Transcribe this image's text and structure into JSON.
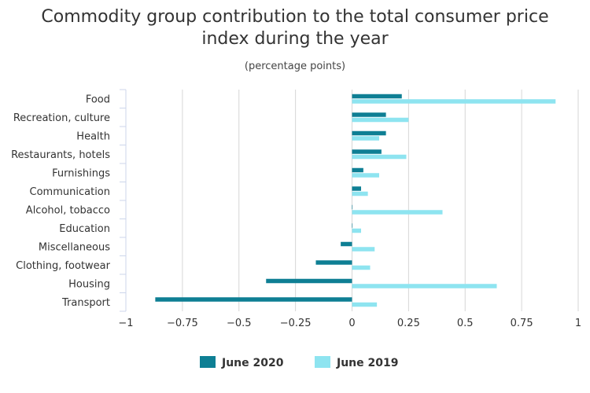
{
  "chart_data": {
    "type": "bar",
    "orientation": "horizontal",
    "title": "Commodity group contribution to the total consumer price index during the year",
    "subtitle": "(percentage points)",
    "categories": [
      "Food",
      "Recreation, culture",
      "Health",
      "Restaurants, hotels",
      "Furnishings",
      "Communication",
      "Alcohol, tobacco",
      "Education",
      "Miscellaneous",
      "Clothing, footwear",
      "Housing",
      "Transport"
    ],
    "series": [
      {
        "name": "June 2020",
        "color": "#0e7f94",
        "values": [
          0.22,
          0.15,
          0.15,
          0.13,
          0.05,
          0.04,
          0.0,
          0.0,
          -0.05,
          -0.16,
          -0.38,
          -0.87
        ]
      },
      {
        "name": "June 2019",
        "color": "#8ee4f0",
        "values": [
          0.9,
          0.25,
          0.12,
          0.24,
          0.12,
          0.07,
          0.4,
          0.04,
          0.1,
          0.08,
          0.64,
          0.11
        ]
      }
    ],
    "xlim": [
      -1,
      1
    ],
    "ticks": [
      -1,
      -0.75,
      -0.5,
      -0.25,
      0,
      0.25,
      0.5,
      0.75,
      1
    ],
    "tick_labels": [
      "−1",
      "−0.75",
      "−0.5",
      "−0.25",
      "0",
      "0.25",
      "0.5",
      "0.75",
      "1"
    ],
    "grid": true,
    "legend_position": "bottom-center"
  }
}
